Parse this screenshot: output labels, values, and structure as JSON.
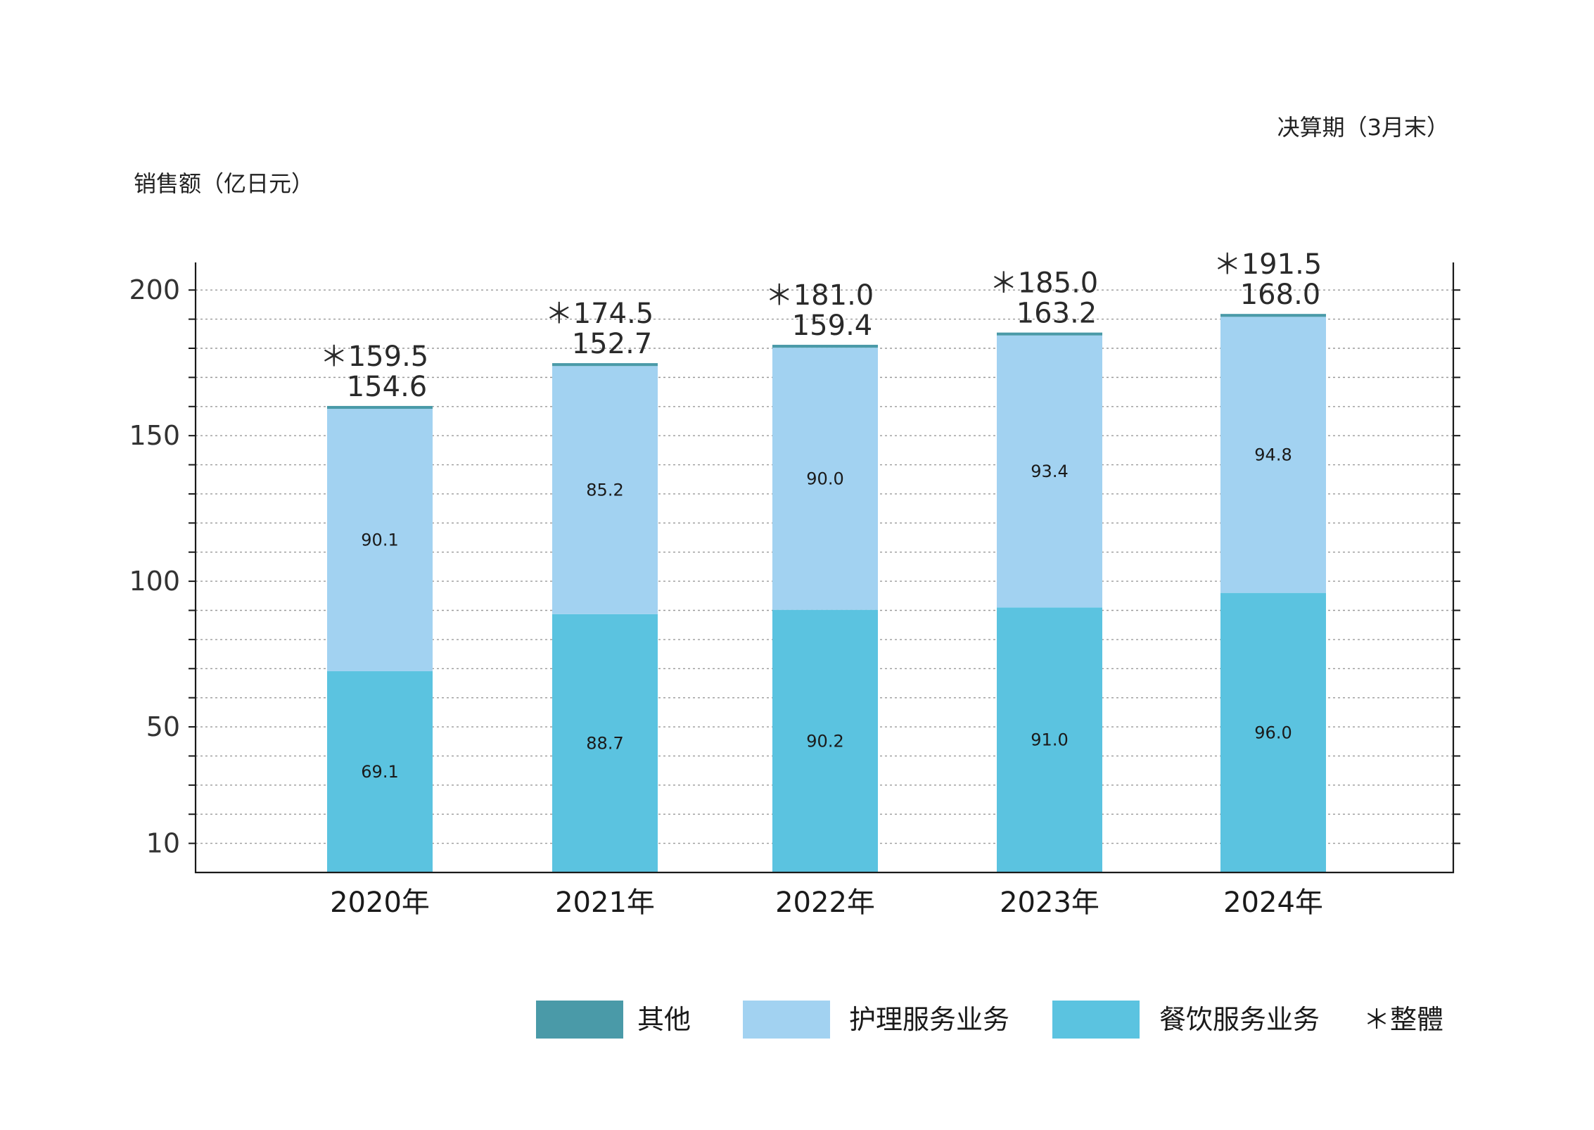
{
  "header": {
    "period_label": "决算期（3月末）",
    "unit_label": "销售额（亿日元）"
  },
  "legend": {
    "items": [
      {
        "label": "其他",
        "color": "#4a9aa8"
      },
      {
        "label": "护理服务业务",
        "color": "#a2d2f1"
      },
      {
        "label": "餐饮服务业务",
        "color": "#5bc3e0"
      }
    ],
    "note": "＊整體"
  },
  "chart_data": {
    "type": "bar",
    "stacked": true,
    "categories": [
      "2020年",
      "2021年",
      "2022年",
      "2023年",
      "2024年"
    ],
    "series": [
      {
        "name": "餐饮服务业务",
        "values": [
          69.1,
          88.7,
          90.2,
          91.0,
          96.0
        ],
        "color": "#5bc3e0"
      },
      {
        "name": "护理服务业务",
        "values": [
          90.1,
          85.2,
          90.0,
          93.4,
          94.8
        ],
        "color": "#a2d2f1"
      },
      {
        "name": "其他",
        "values": [
          0.3,
          0.6,
          0.8,
          0.6,
          0.7
        ],
        "color": "#4a9aa8"
      }
    ],
    "totals": [
      "＊159.5",
      "＊174.5",
      "＊181.0",
      "＊185.0",
      "＊191.5"
    ],
    "subtotals": [
      "154.6",
      "152.7",
      "159.4",
      "163.2",
      "168.0"
    ],
    "plotted_tops": [
      159.5,
      174.5,
      181.0,
      185.0,
      191.5
    ],
    "yticks": [
      10,
      50,
      100,
      150,
      200
    ],
    "ylim": [
      0,
      210
    ],
    "xlabel": "",
    "ylabel": "销售额（亿日元）",
    "grid": true,
    "legend_position": "bottom-right"
  }
}
